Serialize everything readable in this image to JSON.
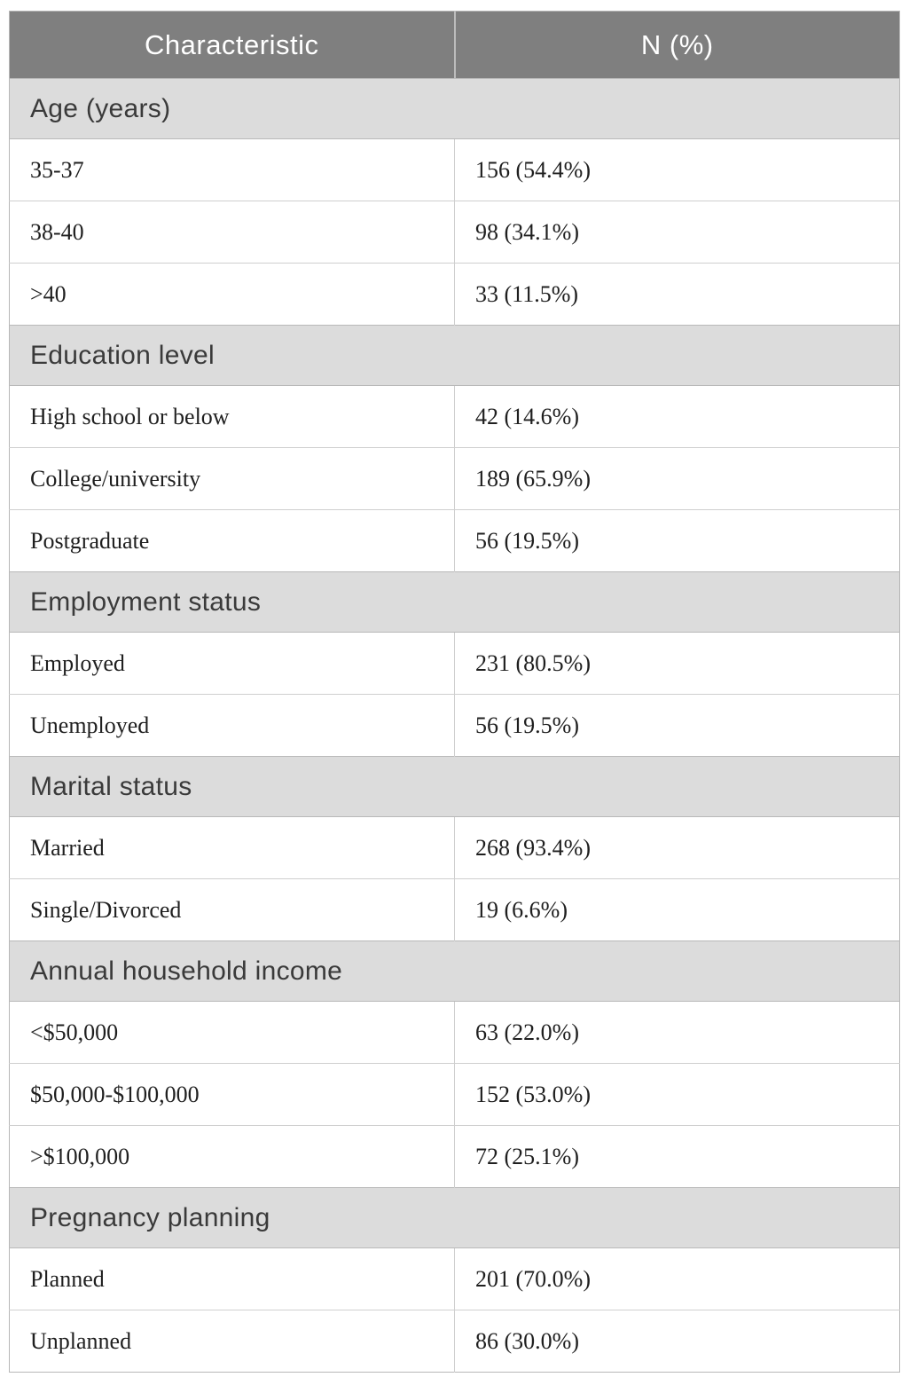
{
  "header": {
    "characteristic": "Characteristic",
    "n_percent": "N (%)"
  },
  "sections": [
    {
      "label": "Age (years)",
      "rows": [
        {
          "characteristic": "35-37",
          "value": "156 (54.4%)"
        },
        {
          "characteristic": "38-40",
          "value": "98 (34.1%)"
        },
        {
          "characteristic": ">40",
          "value": "33 (11.5%)"
        }
      ]
    },
    {
      "label": "Education level",
      "rows": [
        {
          "characteristic": "High school or below",
          "value": "42 (14.6%)"
        },
        {
          "characteristic": "College/university",
          "value": "189 (65.9%)"
        },
        {
          "characteristic": "Postgraduate",
          "value": "56 (19.5%)"
        }
      ]
    },
    {
      "label": "Employment status",
      "rows": [
        {
          "characteristic": "Employed",
          "value": "231 (80.5%)"
        },
        {
          "characteristic": "Unemployed",
          "value": "56 (19.5%)"
        }
      ]
    },
    {
      "label": "Marital status",
      "rows": [
        {
          "characteristic": "Married",
          "value": "268 (93.4%)"
        },
        {
          "characteristic": "Single/Divorced",
          "value": "19 (6.6%)"
        }
      ]
    },
    {
      "label": "Annual household income",
      "rows": [
        {
          "characteristic": "<$50,000",
          "value": "63 (22.0%)"
        },
        {
          "characteristic": "$50,000-$100,000",
          "value": "152 (53.0%)"
        },
        {
          "characteristic": ">$100,000",
          "value": "72 (25.1%)"
        }
      ]
    },
    {
      "label": "Pregnancy planning",
      "rows": [
        {
          "characteristic": "Planned",
          "value": "201 (70.0%)"
        },
        {
          "characteristic": "Unplanned",
          "value": "86 (30.0%)"
        }
      ]
    }
  ],
  "colors": {
    "header_bg": "#7f7f7f",
    "header_text": "#ffffff",
    "section_bg": "#dcdcdc",
    "section_text": "#3a3a3a",
    "body_text": "#1f1f1f",
    "row_border": "#cfcfcf",
    "outer_border": "#b7b7b7"
  }
}
